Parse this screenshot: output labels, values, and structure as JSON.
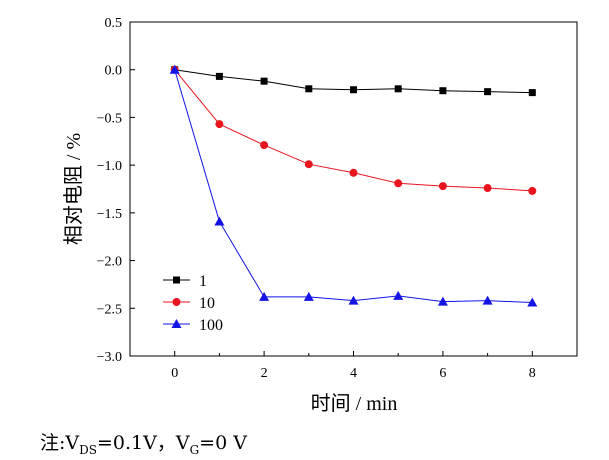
{
  "chart_data": {
    "type": "line",
    "xlabel": "时间  / min",
    "ylabel": "相对电阻 / %",
    "xlim": [
      -1,
      9
    ],
    "ylim": [
      -3.0,
      0.5
    ],
    "xticks": [
      0,
      2,
      4,
      6,
      8
    ],
    "yticks": [
      0.5,
      0.0,
      -0.5,
      -1.0,
      -1.5,
      -2.0,
      -2.5,
      -3.0
    ],
    "ytick_labels": [
      "0.5",
      "0.0",
      "−0.5",
      "−1.0",
      "−1.5",
      "−2.0",
      "−2.5",
      "−3.0"
    ],
    "xtick_labels": [
      "0",
      "2",
      "4",
      "6",
      "8"
    ],
    "grid": false,
    "legend": "bottom-left",
    "x": [
      0,
      1,
      2,
      3,
      4,
      5,
      6,
      7,
      8
    ],
    "series": [
      {
        "name": "1",
        "color": "#000000",
        "marker": "square",
        "values": [
          0.0,
          -0.07,
          -0.12,
          -0.2,
          -0.21,
          -0.2,
          -0.22,
          -0.23,
          -0.24
        ]
      },
      {
        "name": "10",
        "color": "#e8141e",
        "marker": "circle",
        "values": [
          0.0,
          -0.57,
          -0.79,
          -0.99,
          -1.08,
          -1.19,
          -1.22,
          -1.24,
          -1.27
        ]
      },
      {
        "name": "100",
        "color": "#1414e6",
        "marker": "triangle",
        "values": [
          0.0,
          -1.59,
          -2.38,
          -2.38,
          -2.42,
          -2.37,
          -2.43,
          -2.42,
          -2.44
        ]
      }
    ]
  },
  "note": {
    "prefix": "注:V",
    "sub1": "DS",
    "mid": "=0.1V，V",
    "sub2": "G",
    "suffix": "=0 V"
  }
}
